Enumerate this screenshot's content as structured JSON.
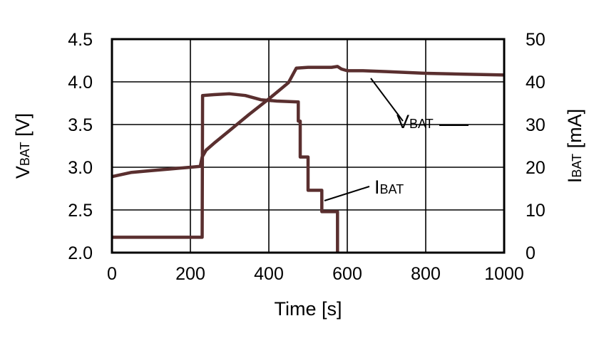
{
  "chart_data": {
    "type": "line",
    "xlabel": "Time [s]",
    "ylabel_left": {
      "main": "V",
      "sub": "BAT",
      "unit": " [V]"
    },
    "ylabel_right": {
      "main": "I",
      "sub": "BAT",
      "unit": " [mA]"
    },
    "xlim": [
      0,
      1000
    ],
    "ylim_left": [
      2.0,
      4.5
    ],
    "ylim_right": [
      0,
      50
    ],
    "x_ticks": [
      "0",
      "200",
      "400",
      "600",
      "800",
      "1000"
    ],
    "y_left_ticks": [
      "2.0",
      "2.5",
      "3.0",
      "3.5",
      "4.0",
      "4.5"
    ],
    "y_right_ticks": [
      "0",
      "10",
      "20",
      "30",
      "40",
      "50"
    ],
    "grid": true,
    "line_color": "#5a2f2f",
    "series": [
      {
        "name": "VBAT",
        "label_main": "V",
        "label_sub": "BAT",
        "axis": "left",
        "points": [
          [
            0,
            2.89
          ],
          [
            50,
            2.94
          ],
          [
            100,
            2.96
          ],
          [
            150,
            2.98
          ],
          [
            200,
            3.0
          ],
          [
            225,
            3.01
          ],
          [
            230,
            3.12
          ],
          [
            240,
            3.2
          ],
          [
            260,
            3.28
          ],
          [
            300,
            3.43
          ],
          [
            350,
            3.62
          ],
          [
            400,
            3.8
          ],
          [
            450,
            3.99
          ],
          [
            470,
            4.16
          ],
          [
            500,
            4.17
          ],
          [
            560,
            4.17
          ],
          [
            575,
            4.18
          ],
          [
            585,
            4.15
          ],
          [
            600,
            4.13
          ],
          [
            640,
            4.13
          ],
          [
            700,
            4.12
          ],
          [
            800,
            4.1
          ],
          [
            900,
            4.09
          ],
          [
            1000,
            4.08
          ]
        ]
      },
      {
        "name": "IBAT",
        "label_main": "I",
        "label_sub": "BAT",
        "axis": "right",
        "points": [
          [
            0,
            3.6
          ],
          [
            230,
            3.6
          ],
          [
            231,
            36.8
          ],
          [
            260,
            37.0
          ],
          [
            300,
            37.2
          ],
          [
            340,
            36.8
          ],
          [
            380,
            35.8
          ],
          [
            420,
            35.5
          ],
          [
            475,
            35.3
          ],
          [
            475,
            30.8
          ],
          [
            480,
            30.8
          ],
          [
            480,
            22.4
          ],
          [
            500,
            22.4
          ],
          [
            500,
            14.6
          ],
          [
            535,
            14.6
          ],
          [
            535,
            9.6
          ],
          [
            575,
            9.6
          ],
          [
            575,
            0
          ]
        ]
      }
    ]
  }
}
